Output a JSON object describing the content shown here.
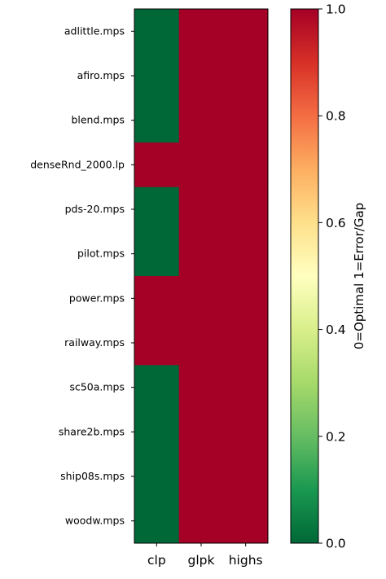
{
  "chart_data": {
    "type": "heatmap",
    "title": "",
    "xlabel": "",
    "ylabel": "",
    "columns": [
      "clp",
      "glpk",
      "highs"
    ],
    "rows": [
      "adlittle.mps",
      "afiro.mps",
      "blend.mps",
      "denseRnd_2000.lp",
      "pds-20.mps",
      "pilot.mps",
      "power.mps",
      "railway.mps",
      "sc50a.mps",
      "share2b.mps",
      "ship08s.mps",
      "woodw.mps"
    ],
    "values": [
      [
        0,
        1,
        1
      ],
      [
        0,
        1,
        1
      ],
      [
        0,
        1,
        1
      ],
      [
        1,
        1,
        1
      ],
      [
        0,
        1,
        1
      ],
      [
        0,
        1,
        1
      ],
      [
        1,
        1,
        1
      ],
      [
        1,
        1,
        1
      ],
      [
        0,
        1,
        1
      ],
      [
        0,
        1,
        1
      ],
      [
        0,
        1,
        1
      ],
      [
        0,
        1,
        1
      ]
    ],
    "colormap": "RdYlGn_r",
    "vmin": 0.0,
    "vmax": 1.0,
    "colorbar": {
      "label": "0=Optimal  1=Error/Gap",
      "ticks": [
        0.0,
        0.2,
        0.4,
        0.6,
        0.8,
        1.0
      ],
      "tick_labels": [
        "0.0",
        "0.2",
        "0.4",
        "0.6",
        "0.8",
        "1.0"
      ]
    },
    "colors": {
      "low": "#006837",
      "high": "#a50026",
      "stops": [
        "#006837",
        "#1a9850",
        "#66bd63",
        "#a6d96a",
        "#d9ef8b",
        "#ffffbf",
        "#fee08b",
        "#fdae61",
        "#f46d43",
        "#d73027",
        "#a50026"
      ]
    }
  }
}
